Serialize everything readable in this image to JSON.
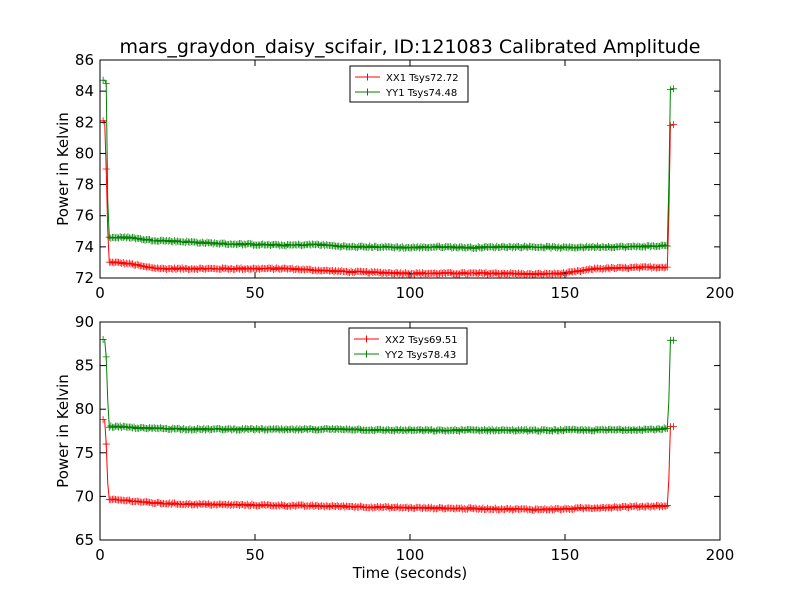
{
  "figure": {
    "title": "mars_graydon_daisy_scifair, ID:121083 Calibrated Amplitude",
    "xlabel": "Time (seconds)"
  },
  "colors": {
    "red": "#ff0000",
    "green": "#008000"
  },
  "chart_data": [
    {
      "type": "line",
      "title": "mars_graydon_daisy_scifair, ID:121083 Calibrated Amplitude",
      "xlabel": "",
      "ylabel": "Power in Kelvin",
      "xlim": [
        0,
        200
      ],
      "ylim": [
        72,
        86
      ],
      "xticks": [
        0,
        50,
        100,
        150,
        200
      ],
      "yticks": [
        72,
        74,
        76,
        78,
        80,
        82,
        84,
        86
      ],
      "legend_position": "top-center",
      "grid": false,
      "series": [
        {
          "name": "XX1 Tsys72.72",
          "color": "#ff0000",
          "x": [
            1,
            1.5,
            2,
            2.5,
            3,
            5,
            10,
            15,
            20,
            30,
            40,
            50,
            60,
            70,
            80,
            90,
            100,
            110,
            120,
            130,
            140,
            150,
            160,
            170,
            180,
            183,
            183.5,
            184,
            184.5,
            185
          ],
          "y": [
            82.1,
            82.1,
            79.0,
            75.0,
            73.0,
            73.0,
            72.9,
            72.7,
            72.6,
            72.6,
            72.6,
            72.6,
            72.6,
            72.5,
            72.4,
            72.35,
            72.3,
            72.3,
            72.3,
            72.3,
            72.25,
            72.3,
            72.6,
            72.65,
            72.7,
            72.7,
            76.0,
            81.8,
            81.85,
            81.85
          ]
        },
        {
          "name": "YY1 Tsys74.48",
          "color": "#008000",
          "x": [
            1,
            1.5,
            2,
            2.5,
            3,
            5,
            10,
            15,
            20,
            30,
            40,
            50,
            60,
            70,
            80,
            90,
            100,
            110,
            120,
            130,
            140,
            150,
            160,
            170,
            180,
            183,
            183.5,
            184,
            184.5,
            185
          ],
          "y": [
            84.7,
            84.7,
            84.5,
            77.0,
            74.6,
            74.6,
            74.6,
            74.45,
            74.4,
            74.3,
            74.2,
            74.15,
            74.1,
            74.15,
            74.0,
            74.0,
            73.95,
            74.0,
            73.95,
            74.0,
            74.0,
            73.95,
            74.0,
            74.0,
            74.05,
            74.1,
            78.0,
            84.1,
            84.15,
            84.15
          ]
        }
      ]
    },
    {
      "type": "line",
      "title": "",
      "xlabel": "Time (seconds)",
      "ylabel": "Power in Kelvin",
      "xlim": [
        0,
        200
      ],
      "ylim": [
        65,
        90
      ],
      "xticks": [
        0,
        50,
        100,
        150,
        200
      ],
      "yticks": [
        65,
        70,
        75,
        80,
        85,
        90
      ],
      "legend_position": "top-center",
      "grid": false,
      "series": [
        {
          "name": "XX2 Tsys69.51",
          "color": "#ff0000",
          "x": [
            1,
            1.5,
            2,
            2.5,
            3,
            5,
            10,
            15,
            20,
            30,
            40,
            50,
            60,
            70,
            80,
            90,
            100,
            110,
            120,
            130,
            140,
            150,
            160,
            170,
            180,
            183,
            183.5,
            184,
            184.5,
            185
          ],
          "y": [
            78.8,
            78.8,
            76.0,
            71.5,
            69.6,
            69.6,
            69.5,
            69.3,
            69.2,
            69.1,
            69.05,
            69.0,
            68.95,
            68.9,
            68.85,
            68.75,
            68.7,
            68.65,
            68.6,
            68.55,
            68.5,
            68.55,
            68.7,
            68.8,
            68.9,
            68.9,
            72.0,
            78.0,
            78.0,
            78.0
          ]
        },
        {
          "name": "YY2 Tsys78.43",
          "color": "#008000",
          "x": [
            1,
            1.5,
            2,
            2.5,
            3,
            5,
            10,
            15,
            20,
            30,
            40,
            50,
            60,
            70,
            80,
            90,
            100,
            110,
            120,
            130,
            140,
            150,
            160,
            170,
            180,
            183,
            183.5,
            184,
            184.5,
            185
          ],
          "y": [
            88.0,
            88.0,
            86.0,
            81.0,
            78.0,
            78.0,
            77.9,
            77.8,
            77.8,
            77.7,
            77.7,
            77.7,
            77.65,
            77.7,
            77.7,
            77.6,
            77.6,
            77.55,
            77.6,
            77.6,
            77.55,
            77.6,
            77.6,
            77.65,
            77.7,
            77.8,
            81.0,
            87.9,
            87.9,
            87.9
          ]
        }
      ]
    }
  ]
}
